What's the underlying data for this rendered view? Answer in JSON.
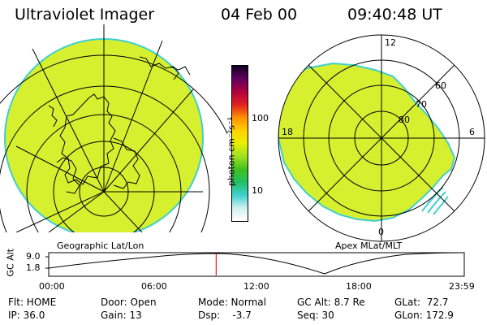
{
  "header": {
    "instrument": "Ultraviolet Imager",
    "date": "04 Feb 00",
    "time": "09:40:48 UT"
  },
  "colorbar": {
    "unit_label": "photon cm⁻²s⁻¹",
    "tick_high": "100",
    "tick_low": "10",
    "stops": [
      "#ffffff",
      "#d0f0f0",
      "#40d0d0",
      "#20c060",
      "#40c020",
      "#a0e020",
      "#e8f000",
      "#ffd000",
      "#ff9000",
      "#e02020",
      "#b00040",
      "#600060",
      "#100020"
    ]
  },
  "left_panel": {
    "caption": "Geographic Lat/Lon",
    "fill_color": "#d6ef2f"
  },
  "right_panel": {
    "caption": "Apex MLat/MLT",
    "mlt_top": "12",
    "mlt_bottom": "0",
    "mlt_left": "18",
    "mlt_right": "6",
    "lat_60": "60",
    "lat_70": "70",
    "lat_80": "80"
  },
  "alt_plot": {
    "axis_label": "GC Alt",
    "y_high": "9.0",
    "y_low": "1.8",
    "x_ticks": [
      "00:00",
      "06:00",
      "12:00",
      "18:00",
      "23:59"
    ],
    "current_time_fraction": 0.403
  },
  "status": {
    "flt": "Flt: HOME",
    "ip": "IP: 36.0",
    "door": "Door: Open",
    "gain": "Gain: 13",
    "mode": "Mode: Normal",
    "dsp": "Dsp:    -3.7",
    "gc_alt": "GC Alt: 8.7 Re",
    "seq": "Seq: 30",
    "glat": "GLat:  72.7",
    "glon": "GLon: 172.9"
  }
}
